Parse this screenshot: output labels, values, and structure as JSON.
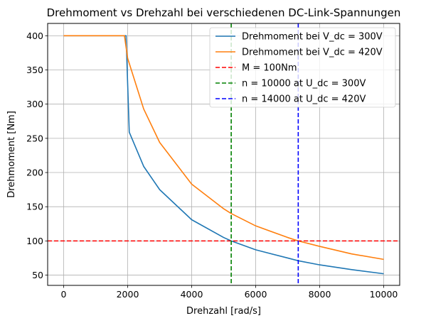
{
  "chart_data": {
    "type": "line",
    "title": "Drehmoment vs Drehzahl bei verschiedenen DC-Link-Spannungen",
    "xlabel": "Drehzahl [rad/s]",
    "ylabel": "Drehmoment [Nm]",
    "xlim": [
      -500,
      10500
    ],
    "ylim": [
      35,
      418
    ],
    "xticks": [
      0,
      2000,
      4000,
      6000,
      8000,
      10000
    ],
    "xtick_labels": [
      "0",
      "2000",
      "4000",
      "6000",
      "8000",
      "10000"
    ],
    "yticks": [
      50,
      100,
      150,
      200,
      250,
      300,
      350,
      400
    ],
    "ytick_labels": [
      "50",
      "100",
      "150",
      "200",
      "250",
      "300",
      "350",
      "400"
    ],
    "grid": true,
    "legend_position": "top-right",
    "series": [
      {
        "name": "Drehmoment bei V_dc = 300V",
        "color": "#1f77b4",
        "style": "solid",
        "x": [
          0,
          1950,
          2050,
          2500,
          3000,
          4000,
          5000,
          5236,
          6000,
          7000,
          7330,
          8000,
          9000,
          10000
        ],
        "y": [
          400,
          400,
          259,
          209,
          175,
          131,
          105,
          100,
          87,
          75,
          71,
          65,
          58,
          52
        ]
      },
      {
        "name": "Drehmoment bei V_dc = 420V",
        "color": "#ff7f0e",
        "style": "solid",
        "x": [
          0,
          1900,
          2000,
          2500,
          3000,
          4000,
          5000,
          5236,
          6000,
          7000,
          7330,
          8000,
          9000,
          10000
        ],
        "y": [
          400,
          400,
          367,
          293,
          244,
          183,
          147,
          140,
          122,
          105,
          100,
          92,
          81,
          73
        ]
      },
      {
        "name": "M = 100Nm",
        "color": "#ff0000",
        "style": "dashed",
        "orientation": "horizontal",
        "value": 100
      },
      {
        "name": "n = 10000 at U_dc = 300V",
        "color": "#008000",
        "style": "dashed",
        "orientation": "vertical",
        "value": 5236
      },
      {
        "name": "n = 14000 at U_dc = 420V",
        "color": "#0000ff",
        "style": "dashed",
        "orientation": "vertical",
        "value": 7330
      }
    ]
  }
}
